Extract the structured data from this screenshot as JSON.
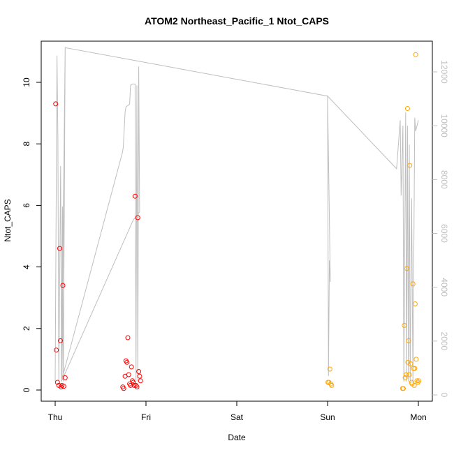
{
  "chart_data": {
    "type": "scatter",
    "title": "ATOM2 Northeast_Pacific_1 Ntot_CAPS",
    "xlabel": "Date",
    "ylabel": "Ntot_CAPS",
    "ylabel_right": "",
    "x_ticks": [
      "Thu",
      "Fri",
      "Sat",
      "Sun",
      "Mon"
    ],
    "y_ticks": [
      "0",
      "2",
      "4",
      "6",
      "8",
      "10"
    ],
    "y_ticks_right": [
      "0",
      "2000",
      "4000",
      "6000",
      "8000",
      "10000",
      "12000"
    ],
    "xlim_days": [
      0,
      4
    ],
    "ylim": [
      0,
      11
    ],
    "ylim_right": [
      0,
      13000
    ],
    "colors": {
      "series_red": "#ff0000",
      "series_orange": "#ffa500",
      "line_gray": "#bebebe",
      "axis": "#000000"
    },
    "series": [
      {
        "color": "#ff0000",
        "points": [
          [
            0.005,
            9.3
          ],
          [
            0.012,
            1.3
          ],
          [
            0.025,
            0.25
          ],
          [
            0.04,
            0.15
          ],
          [
            0.05,
            4.6
          ],
          [
            0.058,
            1.6
          ],
          [
            0.065,
            0.1
          ],
          [
            0.075,
            0.15
          ],
          [
            0.085,
            3.4
          ],
          [
            0.095,
            0.12
          ],
          [
            0.11,
            0.4
          ],
          [
            0.745,
            0.1
          ],
          [
            0.755,
            0.05
          ],
          [
            0.77,
            0.45
          ],
          [
            0.78,
            0.95
          ],
          [
            0.79,
            0.9
          ],
          [
            0.8,
            1.7
          ],
          [
            0.81,
            0.5
          ],
          [
            0.82,
            0.2
          ],
          [
            0.83,
            0.15
          ],
          [
            0.84,
            0.75
          ],
          [
            0.85,
            0.3
          ],
          [
            0.86,
            0.25
          ],
          [
            0.87,
            0.15
          ],
          [
            0.88,
            6.3
          ],
          [
            0.89,
            0.15
          ],
          [
            0.9,
            0.1
          ],
          [
            0.91,
            5.6
          ],
          [
            0.92,
            0.6
          ],
          [
            0.93,
            0.45
          ],
          [
            0.94,
            0.3
          ]
        ]
      },
      {
        "color": "#ffa500",
        "points": [
          [
            3.005,
            0.25
          ],
          [
            3.015,
            0.25
          ],
          [
            3.025,
            0.68
          ],
          [
            3.035,
            0.2
          ],
          [
            3.045,
            0.15
          ],
          [
            3.825,
            0.05
          ],
          [
            3.835,
            0.05
          ],
          [
            3.845,
            2.1
          ],
          [
            3.855,
            0.4
          ],
          [
            3.865,
            0.5
          ],
          [
            3.872,
            3.95
          ],
          [
            3.88,
            9.15
          ],
          [
            3.885,
            0.9
          ],
          [
            3.892,
            1.6
          ],
          [
            3.9,
            0.5
          ],
          [
            3.905,
            7.3
          ],
          [
            3.915,
            0.85
          ],
          [
            3.925,
            0.25
          ],
          [
            3.93,
            0.2
          ],
          [
            3.94,
            3.45
          ],
          [
            3.945,
            0.7
          ],
          [
            3.955,
            0.15
          ],
          [
            3.96,
            0.7
          ],
          [
            3.965,
            2.8
          ],
          [
            3.97,
            10.9
          ],
          [
            3.975,
            1.0
          ],
          [
            3.985,
            0.3
          ],
          [
            3.995,
            0.25
          ],
          [
            4.005,
            0.3
          ]
        ]
      }
    ],
    "gray_line_right": [
      [
        0.0,
        500
      ],
      [
        0.02,
        12600
      ],
      [
        0.03,
        9500
      ],
      [
        0.04,
        500
      ],
      [
        0.06,
        8500
      ],
      [
        0.07,
        500
      ],
      [
        0.08,
        7000
      ],
      [
        0.09,
        500
      ],
      [
        0.11,
        12800
      ],
      [
        0.075,
        600
      ],
      [
        0.74,
        9000
      ],
      [
        0.75,
        9200
      ],
      [
        0.77,
        10500
      ],
      [
        0.78,
        10700
      ],
      [
        0.82,
        10800
      ],
      [
        0.83,
        11500
      ],
      [
        0.85,
        11550
      ],
      [
        0.88,
        11550
      ],
      [
        0.89,
        500
      ],
      [
        0.9,
        11500
      ],
      [
        0.91,
        500
      ],
      [
        0.92,
        12200
      ],
      [
        0.93,
        6800
      ],
      [
        0.86,
        6500
      ],
      [
        0.07,
        500
      ],
      [
        0.11,
        12900
      ],
      [
        3.0,
        11100
      ],
      [
        3.01,
        700
      ],
      [
        3.02,
        5000
      ],
      [
        3.03,
        4200
      ],
      [
        3.0,
        11100
      ],
      [
        3.76,
        8400
      ],
      [
        3.8,
        10200
      ],
      [
        3.81,
        7400
      ],
      [
        3.83,
        10000
      ],
      [
        3.84,
        500
      ],
      [
        3.86,
        10500
      ],
      [
        3.87,
        500
      ],
      [
        3.88,
        10000
      ],
      [
        3.89,
        500
      ],
      [
        3.9,
        9300
      ],
      [
        3.91,
        500
      ],
      [
        3.925,
        7300
      ],
      [
        3.94,
        500
      ],
      [
        3.96,
        10300
      ],
      [
        3.97,
        9800
      ],
      [
        4.0,
        10200
      ]
    ]
  }
}
